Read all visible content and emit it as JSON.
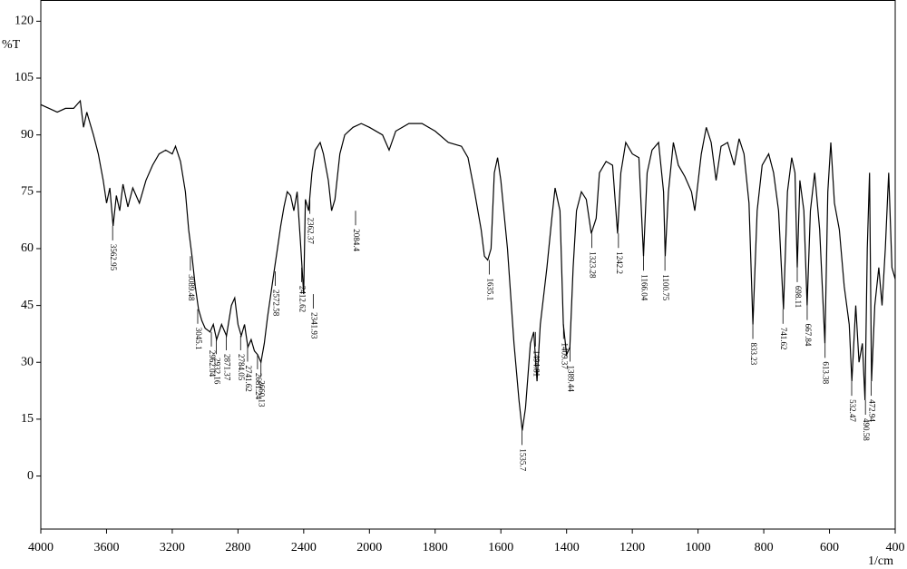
{
  "chart_data": {
    "type": "line",
    "y_label": "%T",
    "x_label": "1/cm",
    "color": "#000000",
    "xlim": [
      4000,
      400
    ],
    "xticks": [
      4000,
      3600,
      3200,
      2800,
      2400,
      2000,
      1800,
      1600,
      1400,
      1200,
      1000,
      800,
      600,
      400
    ],
    "ylim": [
      -14,
      125.6
    ],
    "yticks": [
      0,
      15,
      30,
      45,
      60,
      75,
      90,
      105,
      120
    ],
    "x": [
      4000,
      3950,
      3900,
      3850,
      3800,
      3760,
      3740,
      3720,
      3700,
      3680,
      3650,
      3620,
      3600,
      3580,
      3560,
      3540,
      3520,
      3500,
      3470,
      3440,
      3400,
      3360,
      3320,
      3280,
      3240,
      3200,
      3180,
      3150,
      3120,
      3100,
      3080,
      3060,
      3040,
      3020,
      3000,
      2970,
      2950,
      2930,
      2900,
      2870,
      2840,
      2820,
      2800,
      2780,
      2760,
      2740,
      2720,
      2700,
      2680,
      2660,
      2640,
      2620,
      2600,
      2580,
      2560,
      2540,
      2520,
      2500,
      2480,
      2460,
      2440,
      2420,
      2400,
      2390,
      2370,
      2350,
      2330,
      2300,
      2280,
      2250,
      2230,
      2210,
      2180,
      2150,
      2100,
      2050,
      2000,
      1960,
      1940,
      1920,
      1880,
      1840,
      1800,
      1760,
      1720,
      1700,
      1680,
      1660,
      1650,
      1640,
      1630,
      1620,
      1610,
      1600,
      1580,
      1560,
      1545,
      1535,
      1525,
      1510,
      1500,
      1490,
      1480,
      1460,
      1445,
      1435,
      1420,
      1410,
      1400,
      1390,
      1380,
      1370,
      1355,
      1340,
      1325,
      1310,
      1300,
      1280,
      1260,
      1245,
      1235,
      1220,
      1200,
      1180,
      1166,
      1155,
      1140,
      1120,
      1105,
      1100,
      1090,
      1075,
      1060,
      1040,
      1020,
      1010,
      990,
      975,
      960,
      945,
      930,
      910,
      890,
      875,
      860,
      845,
      833,
      820,
      805,
      785,
      770,
      755,
      740,
      728,
      715,
      705,
      698,
      690,
      678,
      668,
      658,
      645,
      630,
      614,
      605,
      596,
      585,
      570,
      555,
      540,
      532,
      520,
      510,
      500,
      492,
      485,
      478,
      472,
      462,
      450,
      440,
      430,
      420,
      410,
      400
    ],
    "y": [
      98,
      97,
      96,
      97,
      97,
      99,
      92,
      96,
      93,
      90,
      85,
      78,
      72,
      76,
      66,
      74,
      70,
      77,
      71,
      76,
      72,
      78,
      82,
      85,
      86,
      85,
      87,
      83,
      75,
      65,
      58,
      50,
      44,
      41,
      39,
      38,
      40,
      36,
      40,
      37,
      45,
      47,
      40,
      37,
      40,
      34,
      36,
      33,
      32,
      30,
      35,
      42,
      48,
      54,
      60,
      66,
      71,
      75,
      74,
      70,
      75,
      62,
      48,
      73,
      70,
      80,
      86,
      88,
      85,
      78,
      70,
      73,
      85,
      90,
      92,
      93,
      92,
      90,
      86,
      91,
      93,
      93,
      91,
      88,
      87,
      84,
      75,
      65,
      58,
      57,
      60,
      80,
      84,
      78,
      60,
      35,
      20,
      12,
      18,
      35,
      38,
      25,
      40,
      55,
      68,
      76,
      70,
      40,
      32,
      34,
      55,
      70,
      75,
      73,
      64,
      68,
      80,
      83,
      82,
      64,
      80,
      88,
      85,
      84,
      58,
      80,
      86,
      88,
      75,
      58,
      75,
      88,
      82,
      79,
      75,
      70,
      85,
      92,
      88,
      78,
      87,
      88,
      82,
      89,
      85,
      72,
      40,
      70,
      82,
      85,
      80,
      70,
      44,
      75,
      84,
      80,
      55,
      78,
      70,
      45,
      70,
      80,
      65,
      35,
      75,
      88,
      72,
      65,
      50,
      40,
      25,
      45,
      30,
      35,
      20,
      60,
      80,
      25,
      45,
      55,
      45,
      60,
      80,
      55,
      52
    ],
    "peaks": [
      {
        "x": 3562.95,
        "y": 66
      },
      {
        "x": 3089.48,
        "y": 58
      },
      {
        "x": 3045.1,
        "y": 44
      },
      {
        "x": 2962.04,
        "y": 38
      },
      {
        "x": 2932.16,
        "y": 36
      },
      {
        "x": 2871.37,
        "y": 37
      },
      {
        "x": 2784.05,
        "y": 37
      },
      {
        "x": 2741.62,
        "y": 34
      },
      {
        "x": 2681.24,
        "y": 32
      },
      {
        "x": 2660.13,
        "y": 30
      },
      {
        "x": 2572.58,
        "y": 54
      },
      {
        "x": 2412.62,
        "y": 55
      },
      {
        "x": 2362.37,
        "y": 73
      },
      {
        "x": 2341.93,
        "y": 48
      },
      {
        "x": 2084.4,
        "y": 70
      },
      {
        "x": 1635.1,
        "y": 57
      },
      {
        "x": 1535.7,
        "y": 12
      },
      {
        "x": 1494.81,
        "y": 38
      },
      {
        "x": 1409.37,
        "y": 40
      },
      {
        "x": 1389.44,
        "y": 34
      },
      {
        "x": 1323.28,
        "y": 64
      },
      {
        "x": 1242.2,
        "y": 64
      },
      {
        "x": 1166.04,
        "y": 58
      },
      {
        "x": 1100.75,
        "y": 58
      },
      {
        "x": 833.23,
        "y": 40
      },
      {
        "x": 741.62,
        "y": 44
      },
      {
        "x": 698.11,
        "y": 55
      },
      {
        "x": 667.84,
        "y": 45
      },
      {
        "x": 613.38,
        "y": 35
      },
      {
        "x": 532.47,
        "y": 25
      },
      {
        "x": 490.58,
        "y": 20
      },
      {
        "x": 472.94,
        "y": 25
      }
    ]
  }
}
